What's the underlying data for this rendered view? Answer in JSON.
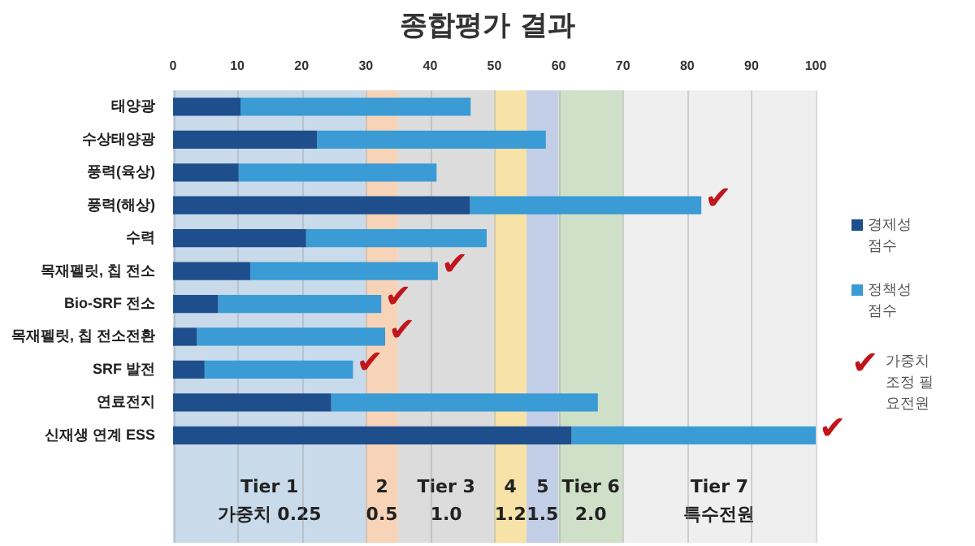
{
  "chart_data": {
    "type": "bar",
    "orientation": "horizontal",
    "stacked": true,
    "title": "종합평가 결과",
    "categories": [
      "태양광",
      "수상태양광",
      "풍력(육상)",
      "풍력(해상)",
      "수력",
      "목재펠릿, 칩 전소",
      "Bio-SRF 전소",
      "목재펠릿, 칩 전소전환",
      "SRF 발전",
      "연료전지",
      "신재생 연계 ESS"
    ],
    "series": [
      {
        "name": "경제성 점수",
        "color": "#1f4e8c",
        "values": [
          10.5,
          22.4,
          10.2,
          46.2,
          20.7,
          12,
          7,
          3.7,
          4.9,
          24.6,
          62
        ]
      },
      {
        "name": "정책성 점수",
        "color": "#3a9bd5",
        "values": [
          35.8,
          35.6,
          30.8,
          36,
          28.1,
          29.2,
          25.4,
          29.3,
          23.1,
          41.5,
          38
        ]
      }
    ],
    "xlim": [
      0,
      100
    ],
    "xticks": [
      0,
      10,
      20,
      30,
      40,
      50,
      60,
      70,
      80,
      90,
      100
    ],
    "grid": "x",
    "legend": "right",
    "bands": [
      {
        "axis": "x",
        "from": 0,
        "to": 30,
        "label": "Tier 1\n가중치 0.25",
        "color": "#c9daea"
      },
      {
        "axis": "x",
        "from": 30,
        "to": 35,
        "label": "2\n0.5",
        "color": "#f7d3b8"
      },
      {
        "axis": "x",
        "from": 35,
        "to": 50,
        "label": "Tier 3\n1.0",
        "color": "#dcdcdc"
      },
      {
        "axis": "x",
        "from": 50,
        "to": 55,
        "label": "4\n1.2",
        "color": "#f7e2a8"
      },
      {
        "axis": "x",
        "from": 55,
        "to": 60,
        "label": "5\n1.5",
        "color": "#c2cfe6"
      },
      {
        "axis": "x",
        "from": 60,
        "to": 70,
        "label": "Tier 6\n2.0",
        "color": "#cfe0c8"
      },
      {
        "axis": "x",
        "from": 70,
        "to": 100,
        "label": "Tier 7\n특수전원",
        "color": "#efefef"
      }
    ],
    "annotations": [
      {
        "text": "✔",
        "x": 82.2,
        "y": "풍력(해상)"
      },
      {
        "text": "✔",
        "x": 41.2,
        "y": "목재펠릿, 칩 전소"
      },
      {
        "text": "✔",
        "x": 32.4,
        "y": "Bio-SRF 전소"
      },
      {
        "text": "✔",
        "x": 33,
        "y": "목재펠릿, 칩 전소전환"
      },
      {
        "text": "✔",
        "x": 28,
        "y": "SRF 발전"
      },
      {
        "text": "✔",
        "x": 100,
        "y": "신재생 연계 ESS"
      },
      "✔ 가중치 조정 필요전원"
    ]
  }
}
